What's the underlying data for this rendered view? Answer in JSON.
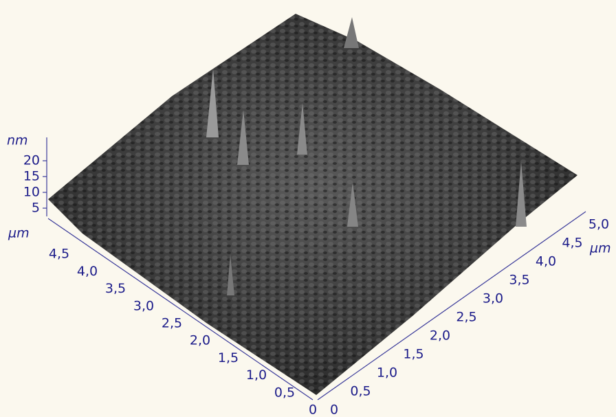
{
  "z_axis": {
    "unit": "nm",
    "ticks": [
      "5",
      "10",
      "15",
      "20"
    ]
  },
  "left_axis": {
    "unit": "µm",
    "ticks": [
      "0",
      "0,5",
      "1,0",
      "1,5",
      "2,0",
      "2,5",
      "3,0",
      "3,5",
      "4,0",
      "4,5"
    ]
  },
  "right_axis": {
    "unit": "µm",
    "ticks": [
      "0",
      "0,5",
      "1,0",
      "1,5",
      "2,0",
      "2,5",
      "3,0",
      "3,5",
      "4,0",
      "4,5",
      "5,0"
    ]
  }
}
